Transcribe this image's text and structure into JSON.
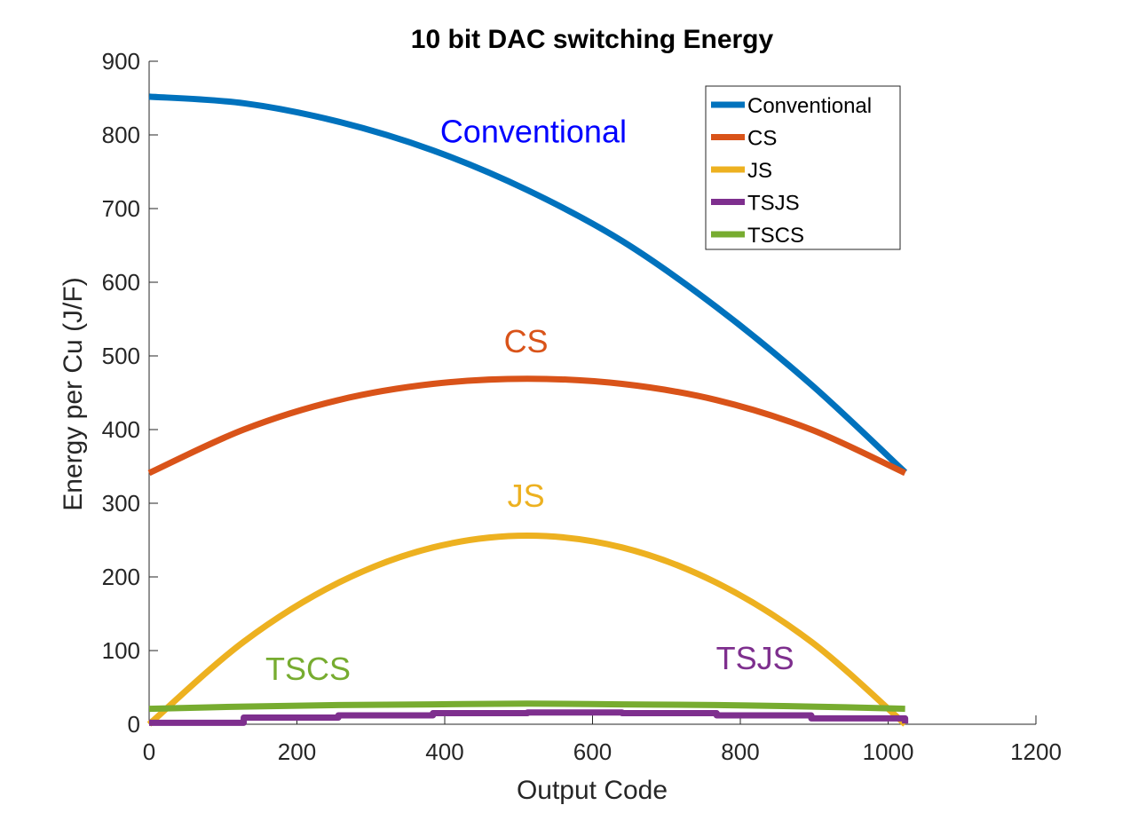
{
  "chart_data": {
    "type": "line",
    "title": "10 bit DAC switching Energy",
    "xlabel": "Output Code",
    "ylabel": "Energy per Cu (J/F)",
    "xlim": [
      0,
      1200
    ],
    "ylim": [
      0,
      900
    ],
    "xticks": [
      "0",
      "200",
      "400",
      "600",
      "800",
      "1000",
      "1200"
    ],
    "yticks": [
      "0",
      "100",
      "200",
      "300",
      "400",
      "500",
      "600",
      "700",
      "800",
      "900"
    ],
    "grid": false,
    "legend_position": "top-right",
    "series": [
      {
        "name": "Conventional",
        "color": "#0072BD",
        "x": [
          0,
          128,
          256,
          384,
          512,
          640,
          768,
          896,
          1023
        ],
        "y": [
          852,
          843,
          818,
          779,
          725,
          656,
          566,
          461,
          342
        ]
      },
      {
        "name": "CS",
        "color": "#D95319",
        "x": [
          0,
          128,
          256,
          384,
          512,
          640,
          768,
          896,
          1023
        ],
        "y": [
          341,
          400,
          440,
          462,
          469,
          462,
          440,
          400,
          341
        ]
      },
      {
        "name": "JS",
        "color": "#EDB120",
        "x": [
          0,
          128,
          256,
          384,
          512,
          640,
          768,
          896,
          1023
        ],
        "y": [
          0,
          112,
          192,
          240,
          256,
          240,
          192,
          112,
          0
        ]
      },
      {
        "name": "TSJS",
        "color": "#7E2F8E",
        "x": [
          0,
          128,
          256,
          384,
          512,
          640,
          768,
          896,
          1023
        ],
        "y": [
          2,
          9,
          12,
          15,
          16,
          15,
          12,
          8,
          1
        ]
      },
      {
        "name": "TSCS",
        "color": "#77AC30",
        "x": [
          0,
          128,
          256,
          384,
          512,
          640,
          768,
          896,
          1023
        ],
        "y": [
          21,
          24,
          26,
          27,
          28,
          27,
          26,
          24,
          21
        ]
      }
    ],
    "annotations": [
      {
        "text": "Conventional",
        "x": 520,
        "y": 790,
        "color": "#0000FF"
      },
      {
        "text": "CS",
        "x": 510,
        "y": 505,
        "color": "#D95319"
      },
      {
        "text": "JS",
        "x": 510,
        "y": 295,
        "color": "#EDB120"
      },
      {
        "text": "TSCS",
        "x": 215,
        "y": 60,
        "color": "#77AC30"
      },
      {
        "text": "TSJS",
        "x": 820,
        "y": 75,
        "color": "#7E2F8E"
      }
    ]
  }
}
